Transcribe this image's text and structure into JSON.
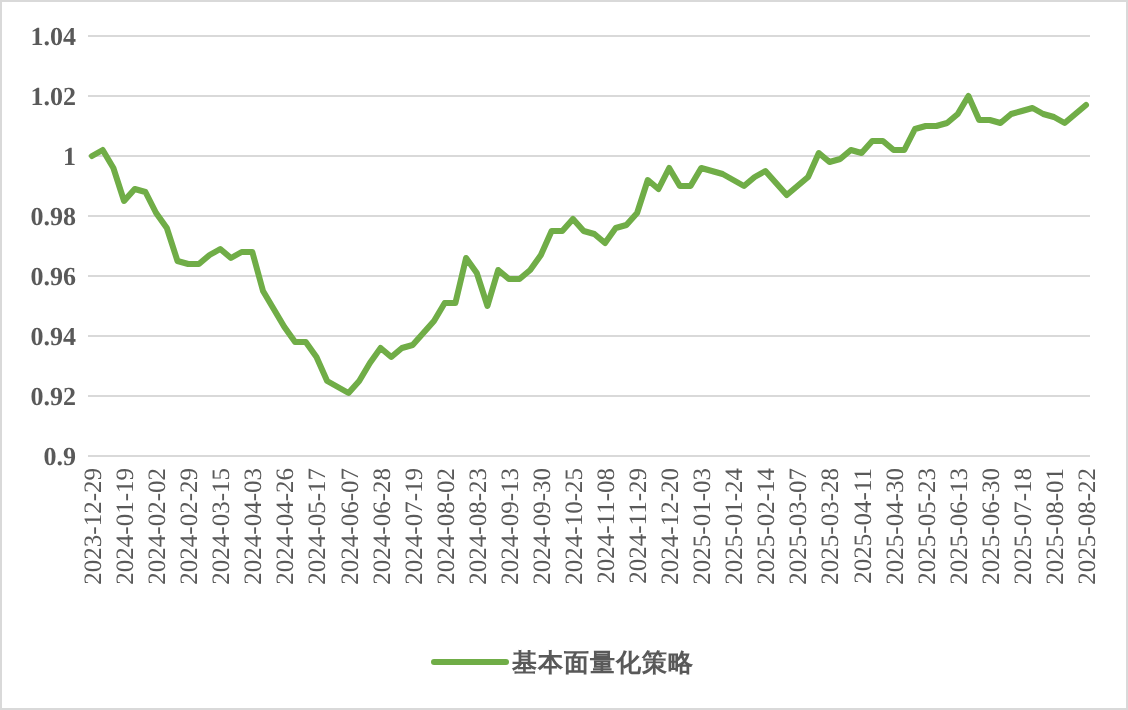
{
  "chart_data": {
    "type": "line",
    "categories": [
      "2023-12-29",
      null,
      null,
      "2024-01-19",
      null,
      null,
      "2024-02-02",
      null,
      null,
      "2024-02-29",
      null,
      null,
      "2024-03-15",
      null,
      null,
      "2024-04-03",
      null,
      null,
      "2024-04-26",
      null,
      null,
      "2024-05-17",
      null,
      null,
      "2024-06-07",
      null,
      null,
      "2024-06-28",
      null,
      null,
      "2024-07-19",
      null,
      null,
      "2024-08-02",
      null,
      null,
      "2024-08-23",
      null,
      null,
      "2024-09-13",
      null,
      null,
      "2024-09-30",
      null,
      null,
      "2024-10-25",
      null,
      null,
      "2024-11-08",
      null,
      null,
      "2024-11-29",
      null,
      null,
      "2024-12-20",
      null,
      null,
      "2025-01-03",
      null,
      null,
      "2025-01-24",
      null,
      null,
      "2025-02-14",
      null,
      null,
      "2025-03-07",
      null,
      null,
      "2025-03-28",
      null,
      null,
      "2025-04-11",
      null,
      null,
      "2025-04-30",
      null,
      null,
      "2025-05-23",
      null,
      null,
      "2025-06-13",
      null,
      null,
      "2025-06-30",
      null,
      null,
      "2025-07-18",
      null,
      null,
      "2025-08-01",
      null,
      null,
      "2025-08-22"
    ],
    "series": [
      {
        "name": "基本面量化策略",
        "color": "#70ad47",
        "values": [
          1.0,
          1.002,
          0.996,
          0.985,
          0.989,
          0.988,
          0.981,
          0.976,
          0.965,
          0.964,
          0.964,
          0.967,
          0.969,
          0.966,
          0.968,
          0.968,
          0.955,
          0.949,
          0.943,
          0.938,
          0.938,
          0.933,
          0.925,
          0.923,
          0.921,
          0.925,
          0.931,
          0.936,
          0.933,
          0.936,
          0.937,
          0.941,
          0.945,
          0.951,
          0.951,
          0.966,
          0.961,
          0.95,
          0.962,
          0.959,
          0.959,
          0.962,
          0.967,
          0.975,
          0.975,
          0.979,
          0.975,
          0.974,
          0.971,
          0.976,
          0.977,
          0.981,
          0.992,
          0.989,
          0.996,
          0.99,
          0.99,
          0.996,
          0.995,
          0.994,
          0.992,
          0.99,
          0.993,
          0.995,
          0.991,
          0.987,
          0.99,
          0.993,
          1.001,
          0.998,
          0.999,
          1.002,
          1.001,
          1.005,
          1.005,
          1.002,
          1.002,
          1.009,
          1.01,
          1.01,
          1.011,
          1.014,
          1.02,
          1.012,
          1.012,
          1.011,
          1.014,
          1.015,
          1.016,
          1.014,
          1.013,
          1.011,
          1.014,
          1.017
        ]
      }
    ],
    "ylim": [
      0.9,
      1.04
    ],
    "yticks": [
      0.9,
      0.92,
      0.94,
      0.96,
      0.98,
      1,
      1.02,
      1.04
    ],
    "grid": "y",
    "legend": "bottom"
  }
}
